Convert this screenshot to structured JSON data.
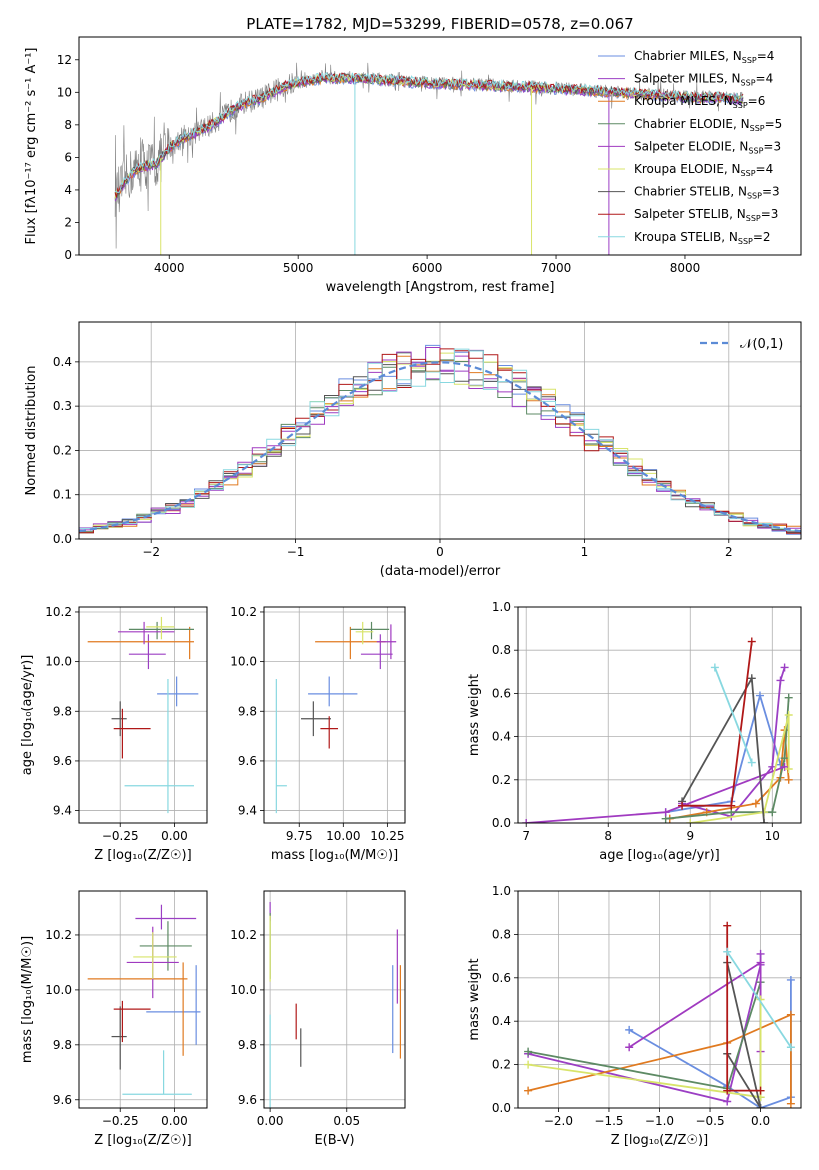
{
  "figure_title": "PLATE=1782, MJD=53299, FIBERID=0578, z=0.067",
  "model_colors": [
    "#6a8ee0",
    "#9b3fc4",
    "#e07a20",
    "#5d8a64",
    "#a03ac0",
    "#d8e46a",
    "#555555",
    "#b01818",
    "#88d8e0"
  ],
  "chart_data": [
    {
      "id": "spectrum",
      "type": "line",
      "title": "PLATE=1782, MJD=53299, FIBERID=0578, z=0.067",
      "xlabel": "wavelength [Angstrom, rest frame]",
      "ylabel": "Flux [fλ10⁻¹⁷ erg cm⁻² s⁻¹ A⁻¹]",
      "xlim": [
        3300,
        8900
      ],
      "ylim": [
        0,
        13.4
      ],
      "xticks": [
        4000,
        5000,
        6000,
        7000,
        8000
      ],
      "yticks": [
        0,
        2,
        4,
        6,
        8,
        10,
        12
      ],
      "grid": false,
      "legend_position": "upper-right",
      "legend": [
        "Chabrier MILES, N_SSP=4",
        "Salpeter MILES, N_SSP=4",
        "Kroupa MILES, N_SSP=6",
        "Chabrier ELODIE, N_SSP=5",
        "Salpeter ELODIE, N_SSP=3",
        "Kroupa ELODIE, N_SSP=4",
        "Chabrier STELIB, N_SSP=3",
        "Salpeter STELIB, N_SSP=3",
        "Kroupa STELIB, N_SSP=2"
      ],
      "continuum": {
        "x": [
          3580,
          3700,
          3800,
          3900,
          4000,
          4100,
          4200,
          4300,
          4400,
          4500,
          4600,
          4700,
          4800,
          4900,
          5000,
          5200,
          5400,
          5600,
          5800,
          6000,
          6300,
          6600,
          6900,
          7100,
          7300,
          7500,
          7700,
          7900,
          8100,
          8300,
          8450
        ],
        "y": [
          3.6,
          5.0,
          5.5,
          5.6,
          6.6,
          7.2,
          7.5,
          7.9,
          8.4,
          9.0,
          9.4,
          9.6,
          10.0,
          10.4,
          10.6,
          10.9,
          10.9,
          10.8,
          10.7,
          10.6,
          10.5,
          10.4,
          10.3,
          10.2,
          10.1,
          10.0,
          9.9,
          9.8,
          9.7,
          9.7,
          9.6
        ]
      },
      "dips": [
        {
          "x": 3934,
          "y": 0.0,
          "model": "Kroupa ELODIE, N_SSP=4"
        },
        {
          "x": 5440,
          "y": 0.0,
          "model": "Kroupa STELIB, N_SSP=2"
        },
        {
          "x": 6810,
          "y": 0.0,
          "model": "Kroupa ELODIE, N_SSP=4"
        },
        {
          "x": 7410,
          "y": 0.0,
          "model": "Salpeter MILES, N_SSP=4"
        }
      ]
    },
    {
      "id": "residuals",
      "type": "histogram",
      "xlabel": "(data-model)/error",
      "ylabel": "Normed distribution",
      "xlim": [
        -2.5,
        2.5
      ],
      "ylim": [
        0,
        0.49
      ],
      "xticks": [
        -2,
        -1,
        0,
        1,
        2
      ],
      "xtick_labels": [
        "−2",
        "−1",
        "0",
        "1",
        "2"
      ],
      "yticks": [
        0.0,
        0.1,
        0.2,
        0.3,
        0.4
      ],
      "grid": true,
      "legend_position": "upper-right",
      "legend": [
        "𝒩(0,1)"
      ],
      "bins": [
        -2.5,
        2.5,
        50
      ],
      "reference_curve": "gaussian N(0,1)"
    },
    {
      "id": "age_vs_Z",
      "type": "errorbar",
      "xlabel": "Z [log₁₀(Z/Z☉)]",
      "ylabel": "age  [log₁₀(age/yr)]",
      "xlim": [
        -0.44,
        0.15
      ],
      "ylim": [
        9.35,
        10.22
      ],
      "xticks": [
        -0.25,
        0.0
      ],
      "xtick_labels": [
        "−0.25",
        "0.00"
      ],
      "yticks": [
        9.4,
        9.6,
        9.8,
        10.0,
        10.2
      ],
      "grid": true,
      "points": [
        {
          "x": 0.01,
          "xerr": [
            0.09,
            0.1
          ],
          "y": 9.87,
          "yerr": [
            0.05,
            0.07
          ]
        },
        {
          "x": -0.12,
          "xerr": [
            0.09,
            0.08
          ],
          "y": 10.03,
          "yerr": [
            0.06,
            0.08
          ]
        },
        {
          "x": 0.07,
          "xerr": [
            0.47,
            0.02
          ],
          "y": 10.08,
          "yerr": [
            0.07,
            0.06
          ]
        },
        {
          "x": -0.08,
          "xerr": [
            0.13,
            0.17
          ],
          "y": 10.13,
          "yerr": [
            0.04,
            0.03
          ]
        },
        {
          "x": -0.14,
          "xerr": [
            0.12,
            0.14
          ],
          "y": 10.12,
          "yerr": [
            0.05,
            0.04
          ]
        },
        {
          "x": -0.06,
          "xerr": [
            0.07,
            0.06
          ],
          "y": 10.14,
          "yerr": [
            0.05,
            0.04
          ]
        },
        {
          "x": -0.25,
          "xerr": [
            0.04,
            0.03
          ],
          "y": 9.77,
          "yerr": [
            0.07,
            0.07
          ]
        },
        {
          "x": -0.24,
          "xerr": [
            0.04,
            0.13
          ],
          "y": 9.73,
          "yerr": [
            0.12,
            0.08
          ]
        },
        {
          "x": -0.03,
          "xerr": [
            0.2,
            0.12
          ],
          "y": 9.5,
          "yerr": [
            0.11,
            0.43
          ]
        }
      ]
    },
    {
      "id": "age_vs_mass",
      "type": "errorbar",
      "xlabel": "mass [log₁₀(M/M☉)]",
      "ylabel": "",
      "xlim": [
        9.55,
        10.35
      ],
      "ylim": [
        9.35,
        10.22
      ],
      "xticks": [
        9.75,
        10.0,
        10.25
      ],
      "xtick_labels": [
        "9.75",
        "10.00",
        "10.25"
      ],
      "yticks": [
        9.4,
        9.6,
        9.8,
        10.0,
        10.2
      ],
      "grid": true,
      "points": [
        {
          "x": 9.92,
          "xerr": [
            0.12,
            0.16
          ],
          "y": 9.87,
          "yerr": [
            0.05,
            0.07
          ]
        },
        {
          "x": 10.21,
          "xerr": [
            0.11,
            0.07
          ],
          "y": 10.03,
          "yerr": [
            0.06,
            0.08
          ]
        },
        {
          "x": 10.04,
          "xerr": [
            0.2,
            0.2
          ],
          "y": 10.08,
          "yerr": [
            0.07,
            0.06
          ]
        },
        {
          "x": 10.16,
          "xerr": [
            0.12,
            0.1
          ],
          "y": 10.13,
          "yerr": [
            0.04,
            0.03
          ]
        },
        {
          "x": 10.27,
          "xerr": [
            0.08,
            0.03
          ],
          "y": 10.08,
          "yerr": [
            0.07,
            0.07
          ]
        },
        {
          "x": 10.11,
          "xerr": [
            0.04,
            0.06
          ],
          "y": 10.12,
          "yerr": [
            0.05,
            0.04
          ]
        },
        {
          "x": 9.83,
          "xerr": [
            0.07,
            0.1
          ],
          "y": 9.77,
          "yerr": [
            0.07,
            0.07
          ]
        },
        {
          "x": 9.92,
          "xerr": [
            0.05,
            0.05
          ],
          "y": 9.73,
          "yerr": [
            0.08,
            0.05
          ]
        },
        {
          "x": 9.62,
          "xerr": [
            0.0,
            0.06
          ],
          "y": 9.5,
          "yerr": [
            0.11,
            0.43
          ]
        }
      ]
    },
    {
      "id": "mass_weight_vs_age",
      "type": "line",
      "xlabel": "age  [log₁₀(age/yr)]",
      "ylabel": "mass weight",
      "xlim": [
        6.9,
        10.35
      ],
      "ylim": [
        0,
        1.0
      ],
      "xticks": [
        7,
        8,
        9,
        10
      ],
      "yticks": [
        0.0,
        0.2,
        0.4,
        0.6,
        0.8,
        1.0
      ],
      "grid": true,
      "series": [
        {
          "x": [
            8.7,
            9.5,
            9.85,
            10.1
          ],
          "y": [
            0.05,
            0.1,
            0.59,
            0.27
          ]
        },
        {
          "x": [
            8.9,
            9.5,
            10.0,
            10.1,
            10.15
          ],
          "y": [
            0.09,
            0.03,
            0.26,
            0.66,
            0.72
          ]
        },
        {
          "x": [
            8.75,
            9.2,
            9.8,
            10.1,
            10.15,
            10.2
          ],
          "y": [
            0.02,
            0.05,
            0.09,
            0.21,
            0.43,
            0.2
          ]
        },
        {
          "x": [
            8.7,
            9.5,
            10.0,
            10.15,
            10.2
          ],
          "y": [
            0.02,
            0.05,
            0.05,
            0.3,
            0.58
          ]
        },
        {
          "x": [
            7.0,
            8.7,
            10.15
          ],
          "y": [
            0.0,
            0.05,
            0.26
          ]
        },
        {
          "x": [
            9.0,
            9.9,
            10.2,
            10.2
          ],
          "y": [
            0.0,
            0.05,
            0.5,
            0.25
          ]
        },
        {
          "x": [
            8.9,
            9.75,
            9.9
          ],
          "y": [
            0.1,
            0.67,
            0.0
          ]
        },
        {
          "x": [
            8.9,
            9.5,
            9.75
          ],
          "y": [
            0.08,
            0.08,
            0.84
          ]
        },
        {
          "x": [
            9.3,
            9.75
          ],
          "y": [
            0.72,
            0.28
          ]
        }
      ]
    },
    {
      "id": "mass_vs_Z",
      "type": "errorbar",
      "xlabel": "Z [log₁₀(Z/Z☉)]",
      "ylabel": "mass [log₁₀(M/M☉)]",
      "xlim": [
        -0.44,
        0.15
      ],
      "ylim": [
        9.57,
        10.36
      ],
      "xticks": [
        -0.25,
        0.0
      ],
      "xtick_labels": [
        "−0.25",
        "0.00"
      ],
      "yticks": [
        9.6,
        9.8,
        10.0,
        10.2
      ],
      "grid": true,
      "points": [
        {
          "x": 0.1,
          "xerr": [
            0.23,
            0.02
          ],
          "y": 9.92,
          "yerr": [
            0.12,
            0.17
          ]
        },
        {
          "x": -0.06,
          "xerr": [
            0.12,
            0.16
          ],
          "y": 10.26,
          "yerr": [
            0.04,
            0.05
          ]
        },
        {
          "x": 0.04,
          "xerr": [
            0.44,
            0.02
          ],
          "y": 10.04,
          "yerr": [
            0.28,
            0.06
          ]
        },
        {
          "x": -0.03,
          "xerr": [
            0.13,
            0.11
          ],
          "y": 10.16,
          "yerr": [
            0.09,
            0.09
          ]
        },
        {
          "x": -0.1,
          "xerr": [
            0.12,
            0.12
          ],
          "y": 10.1,
          "yerr": [
            0.13,
            0.13
          ]
        },
        {
          "x": -0.1,
          "xerr": [
            0.09,
            0.11
          ],
          "y": 10.12,
          "yerr": [
            0.08,
            0.09
          ]
        },
        {
          "x": -0.25,
          "xerr": [
            0.04,
            0.03
          ],
          "y": 9.83,
          "yerr": [
            0.12,
            0.11
          ]
        },
        {
          "x": -0.24,
          "xerr": [
            0.04,
            0.13
          ],
          "y": 9.93,
          "yerr": [
            0.12,
            0.03
          ]
        },
        {
          "x": -0.05,
          "xerr": [
            0.19,
            0.13
          ],
          "y": 9.62,
          "yerr": [
            0.0,
            0.16
          ]
        }
      ]
    },
    {
      "id": "mass_vs_EBV",
      "type": "errorbar",
      "xlabel": "E(B-V)",
      "ylabel": "",
      "xlim": [
        -0.004,
        0.088
      ],
      "ylim": [
        9.57,
        10.36
      ],
      "xticks": [
        0.0,
        0.05
      ],
      "xtick_labels": [
        "0.00",
        "0.05"
      ],
      "yticks": [
        9.6,
        9.8,
        10.0,
        10.2
      ],
      "grid": true,
      "points": [
        {
          "x": 0.08,
          "y": 9.92,
          "yerr": [
            0.15,
            0.17
          ]
        },
        {
          "x": 0.0,
          "y": 10.3,
          "yerr": [
            0.05,
            0.02
          ]
        },
        {
          "x": 0.085,
          "y": 9.92,
          "yerr": [
            0.17,
            0.17
          ]
        },
        {
          "x": 0.0,
          "y": 10.16,
          "yerr": [
            0.12,
            0.12
          ]
        },
        {
          "x": 0.083,
          "y": 10.1,
          "yerr": [
            0.15,
            0.12
          ]
        },
        {
          "x": 0.0,
          "y": 10.15,
          "yerr": [
            0.12,
            0.12
          ]
        },
        {
          "x": 0.02,
          "y": 9.78,
          "yerr": [
            0.06,
            0.08
          ]
        },
        {
          "x": 0.017,
          "y": 9.88,
          "yerr": [
            0.06,
            0.07
          ]
        },
        {
          "x": 0.0,
          "y": 9.61,
          "yerr": [
            0.04,
            0.3
          ]
        }
      ]
    },
    {
      "id": "mass_weight_vs_Z",
      "type": "line",
      "xlabel": "Z [log₁₀(Z/Z☉)]",
      "ylabel": "mass weight",
      "xlim": [
        -2.4,
        0.4
      ],
      "ylim": [
        0,
        1.0
      ],
      "xticks": [
        -2.0,
        -1.5,
        -1.0,
        -0.5,
        0.0
      ],
      "xtick_labels": [
        "−2.0",
        "−1.5",
        "−1.0",
        "−0.5",
        "0.0"
      ],
      "yticks": [
        0.0,
        0.2,
        0.4,
        0.6,
        0.8,
        1.0
      ],
      "grid": true,
      "series": [
        {
          "x": [
            -1.3,
            -0.33,
            0.0,
            0.3,
            0.3
          ],
          "y": [
            0.36,
            0.1,
            0.0,
            0.05,
            0.59
          ]
        },
        {
          "x": [
            -2.3,
            -0.33,
            0.0,
            0.0
          ],
          "y": [
            0.25,
            0.03,
            0.66,
            0.71
          ]
        },
        {
          "x": [
            -2.3,
            -0.33,
            0.3,
            0.3
          ],
          "y": [
            0.08,
            0.3,
            0.43,
            0.02
          ]
        },
        {
          "x": [
            -2.3,
            -0.33,
            0.0,
            0.0
          ],
          "y": [
            0.26,
            0.09,
            0.58,
            0.05
          ]
        },
        {
          "x": [
            -1.3,
            0.0,
            0.0
          ],
          "y": [
            0.28,
            0.67,
            0.26
          ]
        },
        {
          "x": [
            -2.3,
            0.0,
            0.0
          ],
          "y": [
            0.2,
            0.05,
            0.5
          ]
        },
        {
          "x": [
            -0.33,
            0.0,
            -0.33
          ],
          "y": [
            0.67,
            0.0,
            0.25
          ]
        },
        {
          "x": [
            -0.33,
            -0.33,
            0.0
          ],
          "y": [
            0.84,
            0.08,
            0.08
          ]
        },
        {
          "x": [
            -0.33,
            0.3
          ],
          "y": [
            0.72,
            0.28
          ]
        }
      ]
    }
  ]
}
